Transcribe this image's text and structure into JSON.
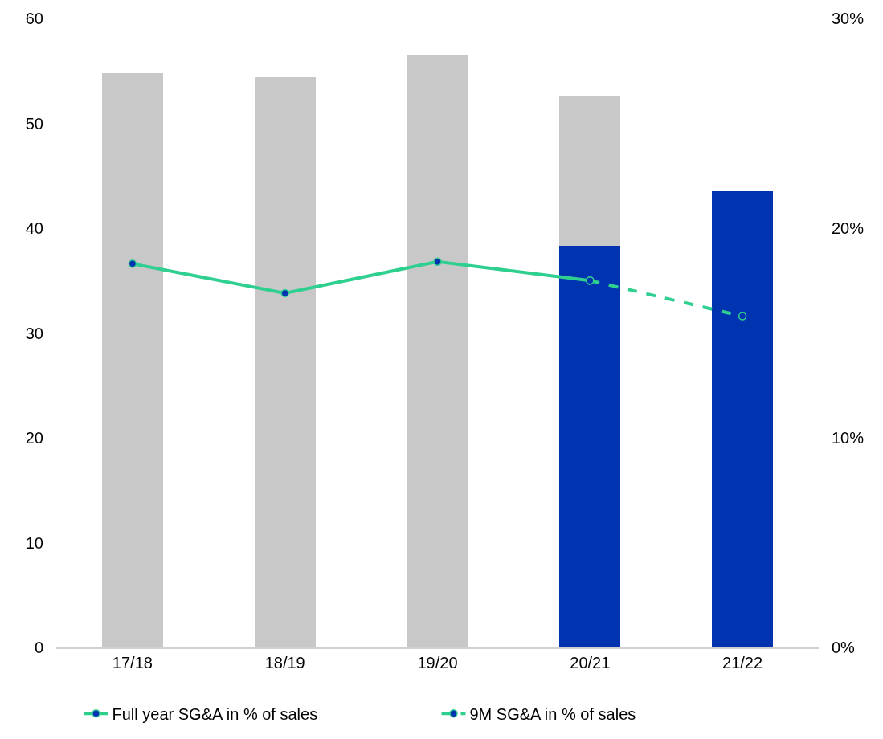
{
  "chart_data": {
    "type": "bar",
    "stacked": true,
    "categories": [
      "17/18",
      "18/19",
      "19/20",
      "20/21",
      "21/22"
    ],
    "series": [
      {
        "color": "#0033b0",
        "values": [
          null,
          null,
          null,
          38.3,
          43.5
        ]
      },
      {
        "color": "#c8c8c8",
        "values": [
          54.8,
          54.4,
          56.5,
          14.3,
          null
        ]
      },
      {
        "type": "line",
        "axis": "y2",
        "name": "Full year SG&A in % of sales",
        "color": "#2ecf8f",
        "line_style": "solid",
        "values": [
          18.3,
          16.9,
          18.4,
          17.5,
          null
        ]
      },
      {
        "type": "line",
        "axis": "y2",
        "name": "9M SG&A in % of sales",
        "color": "#2ecf8f",
        "line_style": "dashed",
        "values": [
          null,
          null,
          null,
          17.5,
          15.8
        ]
      }
    ],
    "marker": "circle",
    "ylim": [
      0,
      60
    ],
    "yticks": [
      0,
      10,
      20,
      30,
      40,
      50,
      60
    ],
    "y2lim": [
      0,
      30
    ],
    "y2ticks": [
      {
        "value": 0,
        "label": "0%"
      },
      {
        "value": 10,
        "label": "10%"
      },
      {
        "value": 20,
        "label": "20%"
      },
      {
        "value": 30,
        "label": "30%"
      }
    ],
    "legend": "bottom"
  }
}
